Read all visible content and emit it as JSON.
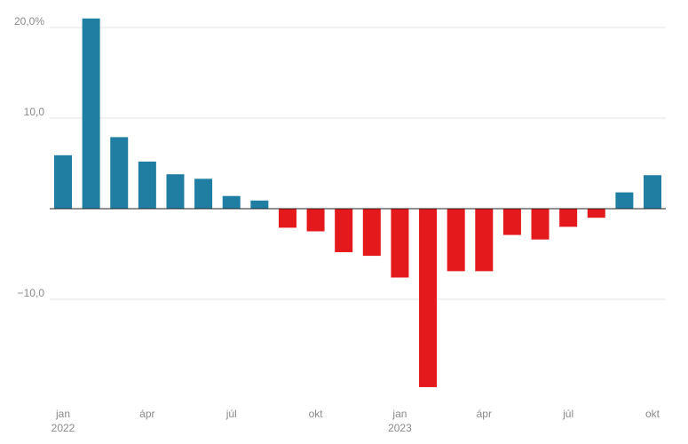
{
  "chart_data": {
    "type": "bar",
    "title": "",
    "xlabel": "",
    "ylabel": "",
    "ylim": [
      -21,
      21.5
    ],
    "y_ticks": [
      {
        "value": 20,
        "label": "20,0%"
      },
      {
        "value": 10,
        "label": "10,0"
      },
      {
        "value": -10,
        "label": "−10,0"
      }
    ],
    "x_tick_labels": [
      {
        "index": 0,
        "label": "jan",
        "sublabel": "2022"
      },
      {
        "index": 3,
        "label": "ápr",
        "sublabel": ""
      },
      {
        "index": 6,
        "label": "júl",
        "sublabel": ""
      },
      {
        "index": 9,
        "label": "okt",
        "sublabel": ""
      },
      {
        "index": 12,
        "label": "jan",
        "sublabel": "2023"
      },
      {
        "index": 15,
        "label": "ápr",
        "sublabel": ""
      },
      {
        "index": 18,
        "label": "júl",
        "sublabel": ""
      },
      {
        "index": 21,
        "label": "okt",
        "sublabel": ""
      }
    ],
    "categories": [
      "2022-01",
      "2022-02",
      "2022-03",
      "2022-04",
      "2022-05",
      "2022-06",
      "2022-07",
      "2022-08",
      "2022-09",
      "2022-10",
      "2022-11",
      "2022-12",
      "2023-01",
      "2023-02",
      "2023-03",
      "2023-04",
      "2023-05",
      "2023-06",
      "2023-07",
      "2023-08",
      "2023-09",
      "2023-10"
    ],
    "values": [
      5.9,
      21.0,
      7.9,
      5.2,
      3.8,
      3.3,
      1.4,
      0.9,
      -2.1,
      -2.5,
      -4.8,
      -5.2,
      -7.6,
      -19.7,
      -6.9,
      -6.9,
      -2.9,
      -3.4,
      -2.0,
      -1.0,
      1.8,
      3.7
    ],
    "grid": true,
    "legend": "none",
    "colors": {
      "positive": "#1f7ea1",
      "negative": "#e3191b"
    }
  }
}
